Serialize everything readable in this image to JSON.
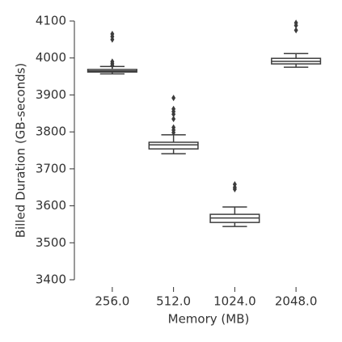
{
  "chart_data": {
    "type": "box",
    "x_label": "Memory (MB)",
    "y_label": "Billed Duration (GB-seconds)",
    "categories": [
      "256.0",
      "512.0",
      "1024.0",
      "2048.0"
    ],
    "boxes": [
      {
        "min": 3957,
        "q1": 3962,
        "median": 3965,
        "q3": 3969,
        "max": 3977,
        "outliers": [
          4065,
          4058,
          4050,
          3990,
          3985,
          3980
        ]
      },
      {
        "min": 3741,
        "q1": 3754,
        "median": 3765,
        "q3": 3772,
        "max": 3792,
        "outliers": [
          3892,
          3862,
          3855,
          3848,
          3835,
          3812,
          3805,
          3798
        ]
      },
      {
        "min": 3544,
        "q1": 3555,
        "median": 3567,
        "q3": 3577,
        "max": 3597,
        "outliers": [
          3658,
          3650,
          3645
        ]
      },
      {
        "min": 3975,
        "q1": 3984,
        "median": 3991,
        "q3": 3999,
        "max": 4012,
        "outliers": [
          4095,
          4088,
          4075
        ]
      }
    ],
    "color": "#3d3d3d",
    "ylim": [
      3400,
      4100
    ],
    "yticks": [
      3400,
      3500,
      3600,
      3700,
      3800,
      3900,
      4000,
      4100
    ]
  }
}
